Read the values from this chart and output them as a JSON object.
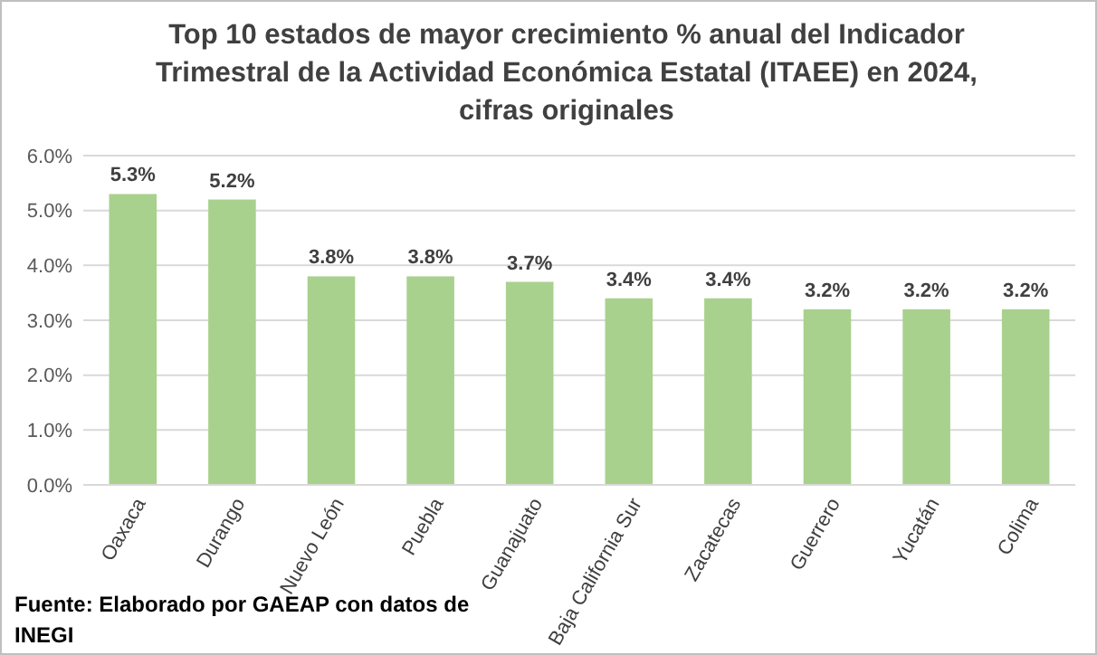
{
  "chart_data": {
    "type": "bar",
    "title": "Top 10 estados de mayor crecimiento % anual del Indicador Trimestral de la Actividad Económica Estatal (ITAEE) en 2024, cifras originales",
    "categories": [
      "Oaxaca",
      "Durango",
      "Nuevo León",
      "Puebla",
      "Guanajuato",
      "Baja California Sur",
      "Zacatecas",
      "Guerrero",
      "Yucatán",
      "Colima"
    ],
    "values": [
      5.3,
      5.2,
      3.8,
      3.8,
      3.7,
      3.4,
      3.4,
      3.2,
      3.2,
      3.2
    ],
    "value_labels": [
      "5.3%",
      "5.2%",
      "3.8%",
      "3.8%",
      "3.7%",
      "3.4%",
      "3.4%",
      "3.2%",
      "3.2%",
      "3.2%"
    ],
    "color": "#a9d18e",
    "ylim": [
      0,
      6
    ],
    "yticks": [
      {
        "value": 0,
        "label": "0.0%"
      },
      {
        "value": 1,
        "label": "1.0%"
      },
      {
        "value": 2,
        "label": "2.0%"
      },
      {
        "value": 3,
        "label": "3.0%"
      },
      {
        "value": 4,
        "label": "4.0%"
      },
      {
        "value": 5,
        "label": "5.0%"
      },
      {
        "value": 6,
        "label": "6.0%"
      }
    ],
    "grid": "y",
    "annotations": [
      "Fuente: Elaborado por GAEAP con datos de INEGI"
    ]
  }
}
